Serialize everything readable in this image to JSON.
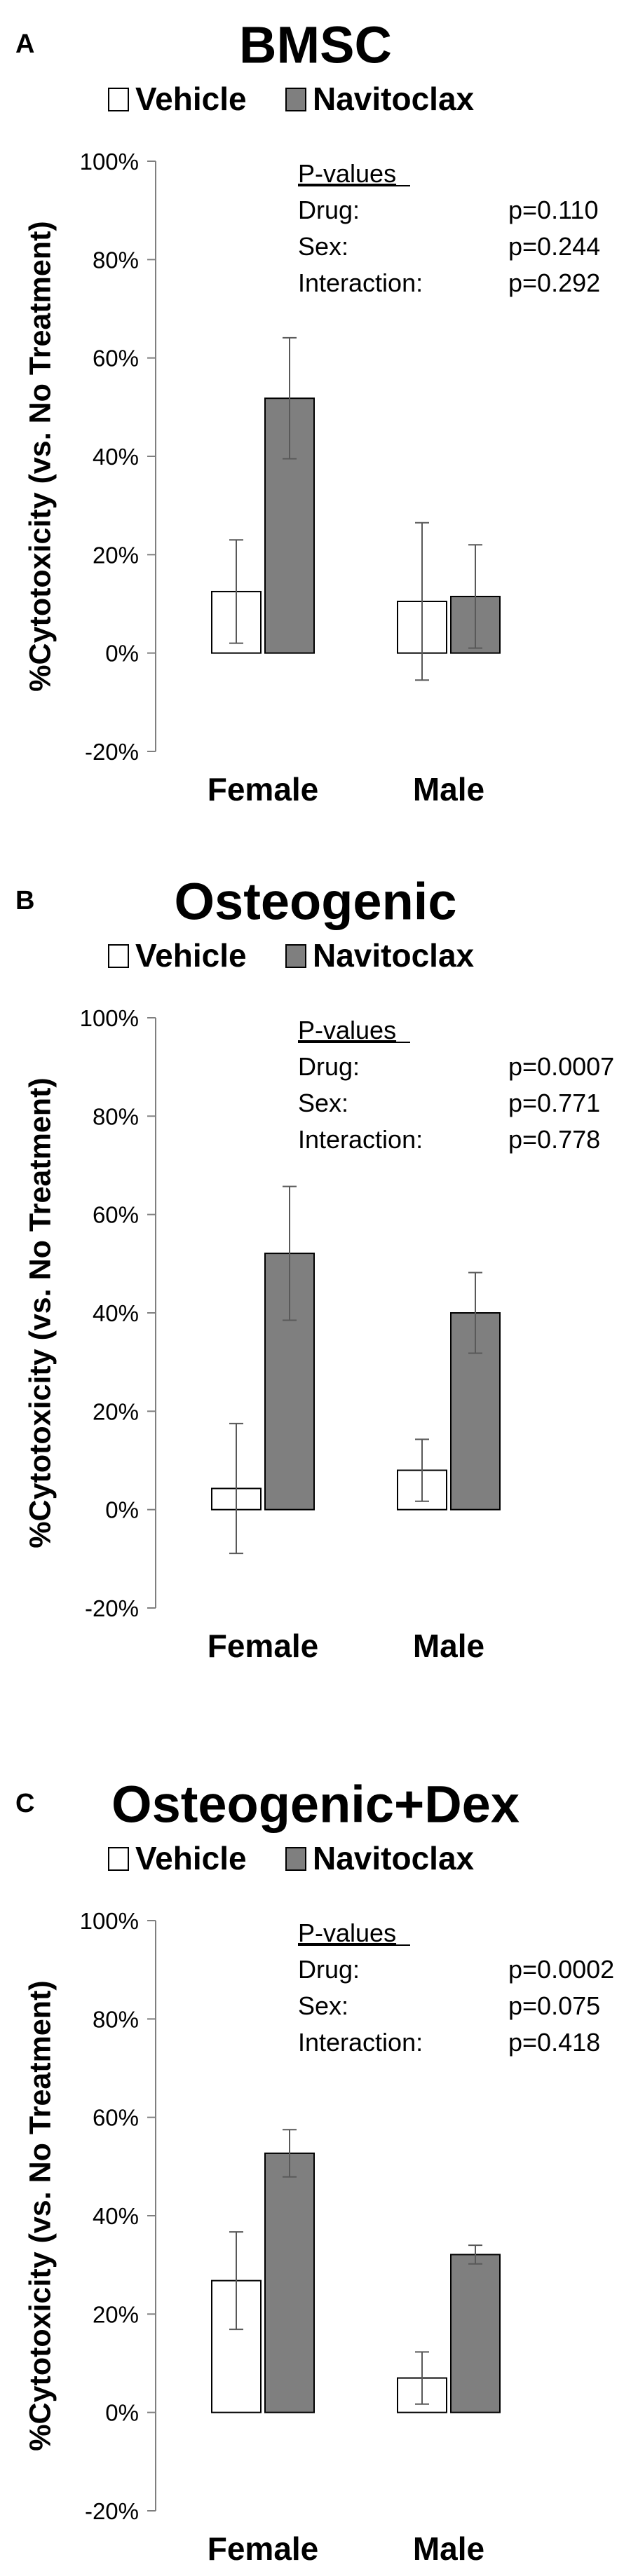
{
  "chart_data": [
    {
      "panel": "A",
      "type": "bar",
      "title": "BMSC",
      "ylabel": "%Cytotoxicity (vs. No Treatment)",
      "ylim": [
        -20,
        100
      ],
      "yticks": [
        "100%",
        "80%",
        "60%",
        "40%",
        "20%",
        "0%",
        "-20%"
      ],
      "categories": [
        "Female",
        "Male"
      ],
      "series": [
        {
          "name": "Vehicle",
          "color": "#ffffff",
          "values": [
            12.5,
            10.5
          ],
          "errors": [
            10.5,
            16
          ]
        },
        {
          "name": "Navitoclax",
          "color": "#7f7f7f",
          "values": [
            51.8,
            11.5
          ],
          "errors": [
            12.3,
            10.5
          ]
        }
      ],
      "pvalues": {
        "header": "P-values",
        "rows": [
          {
            "label": "Drug:",
            "value": "p=0.110"
          },
          {
            "label": "Sex:",
            "value": "p=0.244"
          },
          {
            "label": "Interaction:",
            "value": "p=0.292"
          }
        ]
      }
    },
    {
      "panel": "B",
      "type": "bar",
      "title": "Osteogenic",
      "ylabel": "%Cytotoxicity (vs. No Treatment)",
      "ylim": [
        -20,
        100
      ],
      "yticks": [
        "100%",
        "80%",
        "60%",
        "40%",
        "20%",
        "0%",
        "-20%"
      ],
      "categories": [
        "Female",
        "Male"
      ],
      "series": [
        {
          "name": "Vehicle",
          "color": "#ffffff",
          "values": [
            4.3,
            8
          ],
          "errors": [
            13.2,
            6.3
          ]
        },
        {
          "name": "Navitoclax",
          "color": "#7f7f7f",
          "values": [
            52.1,
            40
          ],
          "errors": [
            13.6,
            8.2
          ]
        }
      ],
      "pvalues": {
        "header": "P-values",
        "rows": [
          {
            "label": "Drug:",
            "value": "p=0.0007"
          },
          {
            "label": "Sex:",
            "value": "p=0.771"
          },
          {
            "label": "Interaction:",
            "value": "p=0.778"
          }
        ]
      }
    },
    {
      "panel": "C",
      "type": "bar",
      "title": "Osteogenic+Dex",
      "ylabel": "%Cytotoxicity (vs. No Treatment)",
      "ylim": [
        -20,
        100
      ],
      "yticks": [
        "100%",
        "80%",
        "60%",
        "40%",
        "20%",
        "0%",
        "-20%"
      ],
      "categories": [
        "Female",
        "Male"
      ],
      "series": [
        {
          "name": "Vehicle",
          "color": "#ffffff",
          "values": [
            26.8,
            7
          ],
          "errors": [
            9.9,
            5.3
          ]
        },
        {
          "name": "Navitoclax",
          "color": "#7f7f7f",
          "values": [
            52.7,
            32.1
          ],
          "errors": [
            4.8,
            1.9
          ]
        }
      ],
      "pvalues": {
        "header": "P-values",
        "rows": [
          {
            "label": "Drug:",
            "value": "p=0.0002"
          },
          {
            "label": "Sex:",
            "value": "p=0.075"
          },
          {
            "label": "Interaction:",
            "value": "p=0.418"
          }
        ]
      }
    }
  ]
}
